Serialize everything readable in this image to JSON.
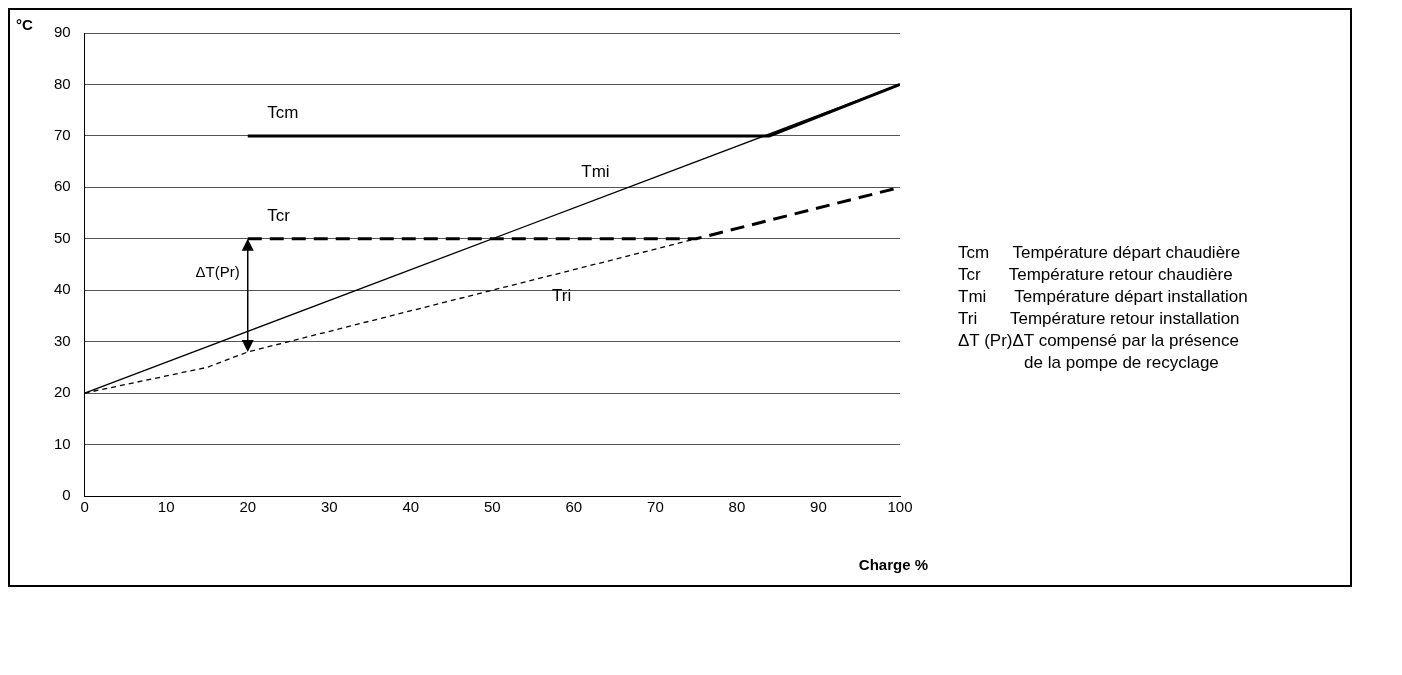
{
  "chart_data": {
    "type": "line",
    "xlabel": "Charge %",
    "ylabel": "°C",
    "xlim": [
      0,
      100
    ],
    "xticks": [
      0,
      10,
      20,
      30,
      40,
      50,
      60,
      70,
      80,
      90,
      100
    ],
    "ylim": [
      0,
      90
    ],
    "yticks": [
      0,
      10,
      20,
      30,
      40,
      50,
      60,
      70,
      80,
      90
    ],
    "grid": "y",
    "legend": false,
    "marker": "none",
    "series": [
      {
        "name": "Tcm",
        "color": "#000000",
        "line_style": "solid",
        "x": [
          20,
          84,
          100
        ],
        "values": [
          70,
          70,
          80
        ]
      },
      {
        "name": "Tcr",
        "color": "#000000",
        "line_style": "dashed",
        "x": [
          20,
          75,
          100
        ],
        "values": [
          50,
          50,
          60
        ]
      },
      {
        "name": "Tmi",
        "color": "#000000",
        "line_style": "solid",
        "x": [
          0,
          100
        ],
        "values": [
          20,
          80
        ]
      },
      {
        "name": "Tri",
        "color": "#000000",
        "line_style": "dotted",
        "x": [
          0,
          15,
          20,
          35,
          50,
          60,
          75
        ],
        "values": [
          20,
          25,
          28,
          34,
          40,
          44,
          50
        ]
      }
    ],
    "annotations": [
      {
        "text": "ΔT(Pr)",
        "x": 20,
        "y": 50
      },
      "Tcm     Température départ chaudière",
      "Tcr      Température retour chaudière",
      "Tmi      Température départ installation",
      "Tri       Température retour installation",
      "ΔT (Pr)ΔT compensé par la présence",
      "              de la pompe de recyclage"
    ]
  }
}
